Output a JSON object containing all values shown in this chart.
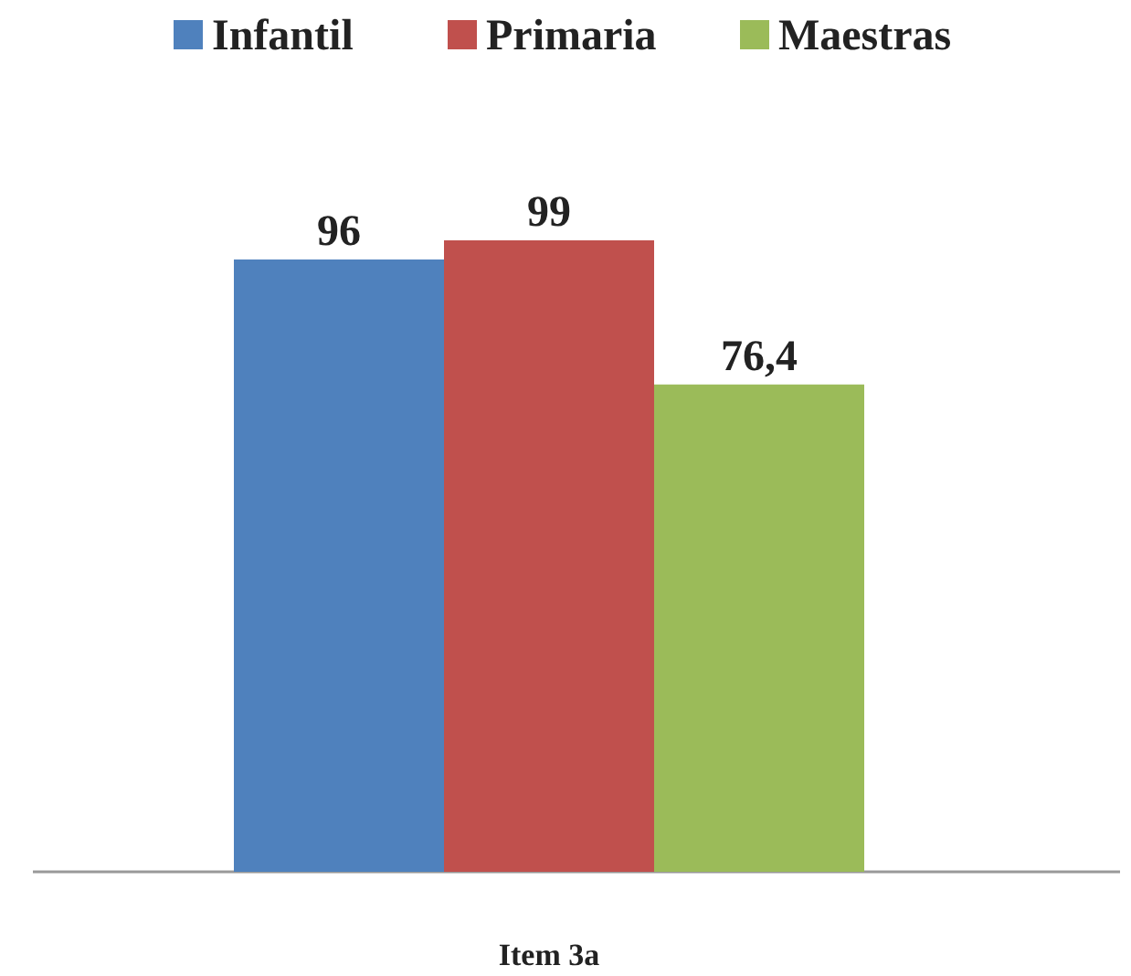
{
  "chart_data": {
    "type": "bar",
    "categories": [
      null,
      null,
      null
    ],
    "xlabel": "Item 3a",
    "stacked": true,
    "series": [
      {
        "name": "Infantil",
        "color": "#4f81bd",
        "values": [
          96,
          null,
          null
        ],
        "value_labels": [
          "96",
          null,
          null
        ]
      },
      {
        "name": "Primaria",
        "color": "#c0504d",
        "values": [
          null,
          99,
          null
        ],
        "value_labels": [
          null,
          "99",
          null
        ]
      },
      {
        "name": "Maestras",
        "color": "#9bbb59",
        "values": [
          null,
          null,
          76.4
        ],
        "value_labels": [
          null,
          null,
          "76,4"
        ]
      }
    ],
    "ylim": [
      0,
      100
    ],
    "legend": "top",
    "grid": false
  }
}
